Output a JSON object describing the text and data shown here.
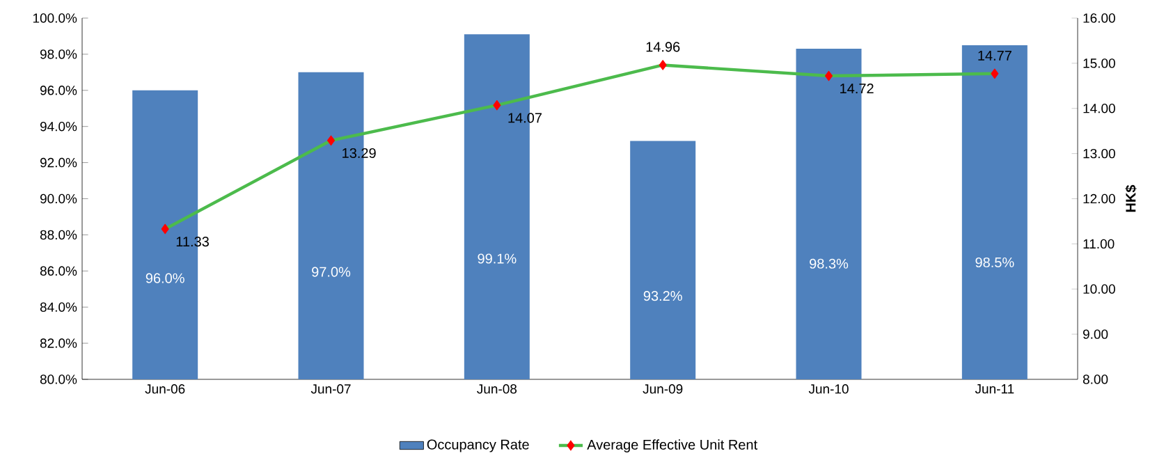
{
  "chart_data": {
    "type": "bar",
    "categories": [
      "Jun-06",
      "Jun-07",
      "Jun-08",
      "Jun-09",
      "Jun-10",
      "Jun-11"
    ],
    "ylim": [
      80,
      100
    ],
    "yticks": [
      {
        "value": 80,
        "label": "80.0%"
      },
      {
        "value": 82,
        "label": "82.0%"
      },
      {
        "value": 84,
        "label": "84.0%"
      },
      {
        "value": 86,
        "label": "86.0%"
      },
      {
        "value": 88,
        "label": "88.0%"
      },
      {
        "value": 90,
        "label": "90.0%"
      },
      {
        "value": 92,
        "label": "92.0%"
      },
      {
        "value": 94,
        "label": "94.0%"
      },
      {
        "value": 96,
        "label": "96.0%"
      },
      {
        "value": 98,
        "label": "98.0%"
      },
      {
        "value": 100,
        "label": "100.0%"
      }
    ],
    "y2label": "HK$",
    "y2lim": [
      8,
      16
    ],
    "y2ticks": [
      {
        "value": 8,
        "label": "8.00"
      },
      {
        "value": 9,
        "label": "9.00"
      },
      {
        "value": 10,
        "label": "10.00"
      },
      {
        "value": 11,
        "label": "11.00"
      },
      {
        "value": 12,
        "label": "12.00"
      },
      {
        "value": 13,
        "label": "13.00"
      },
      {
        "value": 14,
        "label": "14.00"
      },
      {
        "value": 15,
        "label": "15.00"
      },
      {
        "value": 16,
        "label": "16.00"
      }
    ],
    "legend": "bottom",
    "series": [
      {
        "name": "Occupancy Rate",
        "color": "#4f81bd",
        "values": [
          96.0,
          97.0,
          99.1,
          93.2,
          98.3,
          98.5
        ],
        "value_labels": [
          "96.0%",
          "97.0%",
          "99.1%",
          "93.2%",
          "98.3%",
          "98.5%"
        ]
      },
      {
        "name": "Average Effective Unit Rent",
        "type": "line",
        "axis": "y2",
        "color": "#4cbb4c",
        "marker": "diamond",
        "values": [
          11.33,
          13.29,
          14.07,
          14.96,
          14.72,
          14.77
        ],
        "value_labels": [
          "11.33",
          "13.29",
          "14.07",
          "14.96",
          "14.72",
          "14.77"
        ]
      }
    ]
  }
}
